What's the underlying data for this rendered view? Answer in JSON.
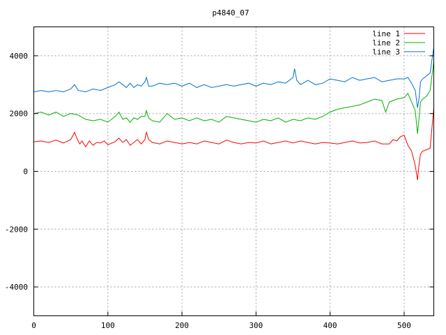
{
  "chart_data": {
    "type": "line",
    "title": "p4840_07",
    "xlabel": "",
    "ylabel": "",
    "xlim": [
      0,
      540
    ],
    "ylim": [
      -5000,
      5000
    ],
    "xticks": [
      0,
      100,
      200,
      300,
      400,
      500
    ],
    "yticks": [
      -4000,
      -2000,
      0,
      2000,
      4000
    ],
    "grid": true,
    "legend_position": "top-right",
    "series": [
      {
        "name": "line 1",
        "color": "#ff0000",
        "x": [
          0,
          10,
          20,
          30,
          40,
          50,
          55,
          58,
          62,
          65,
          70,
          75,
          80,
          85,
          90,
          95,
          100,
          110,
          115,
          120,
          125,
          130,
          135,
          140,
          145,
          150,
          152,
          155,
          160,
          170,
          180,
          190,
          200,
          210,
          220,
          230,
          240,
          250,
          260,
          270,
          280,
          290,
          300,
          310,
          320,
          330,
          340,
          350,
          360,
          370,
          380,
          390,
          400,
          410,
          420,
          430,
          440,
          450,
          460,
          470,
          480,
          485,
          490,
          495,
          500,
          505,
          510,
          515,
          518,
          520,
          522,
          525,
          530,
          535,
          540
        ],
        "y": [
          1020,
          1050,
          1000,
          1080,
          980,
          1100,
          1350,
          1150,
          950,
          1050,
          850,
          1050,
          900,
          1000,
          980,
          1050,
          920,
          1030,
          1150,
          1000,
          1100,
          900,
          1000,
          1100,
          950,
          1100,
          1350,
          1100,
          1000,
          950,
          1050,
          1000,
          950,
          1000,
          950,
          1050,
          1000,
          950,
          1080,
          1000,
          950,
          1000,
          980,
          1050,
          950,
          1000,
          1050,
          980,
          1050,
          1000,
          950,
          1000,
          980,
          950,
          1000,
          1050,
          980,
          1000,
          1050,
          950,
          950,
          1100,
          1050,
          1200,
          1250,
          900,
          700,
          200,
          -300,
          200,
          600,
          700,
          750,
          800,
          2200
        ]
      },
      {
        "name": "line 2",
        "color": "#00b000",
        "x": [
          0,
          10,
          20,
          30,
          40,
          50,
          60,
          70,
          80,
          90,
          100,
          110,
          115,
          120,
          125,
          130,
          135,
          140,
          145,
          150,
          152,
          155,
          160,
          170,
          180,
          190,
          200,
          210,
          220,
          230,
          240,
          250,
          260,
          270,
          280,
          290,
          300,
          310,
          320,
          330,
          340,
          350,
          360,
          370,
          380,
          390,
          400,
          410,
          420,
          430,
          440,
          450,
          460,
          470,
          475,
          480,
          490,
          500,
          505,
          510,
          515,
          518,
          520,
          522,
          525,
          530,
          535,
          540
        ],
        "y": [
          2000,
          2050,
          1950,
          2050,
          1900,
          2000,
          1950,
          1800,
          1750,
          1800,
          1700,
          1900,
          2050,
          1800,
          1850,
          1700,
          1850,
          1800,
          1900,
          1900,
          2100,
          1850,
          1750,
          1700,
          2000,
          1800,
          1850,
          1750,
          1850,
          1750,
          1800,
          1700,
          1900,
          1850,
          1800,
          1750,
          1700,
          1800,
          1750,
          1850,
          1700,
          1800,
          1750,
          1850,
          1800,
          1900,
          2050,
          2150,
          2200,
          2250,
          2300,
          2400,
          2500,
          2450,
          2050,
          2400,
          2500,
          2550,
          2700,
          2400,
          2100,
          1300,
          1800,
          2400,
          2500,
          2600,
          2800,
          3800
        ]
      },
      {
        "name": "line 3",
        "color": "#0070d0",
        "x": [
          0,
          10,
          20,
          30,
          40,
          50,
          55,
          60,
          70,
          80,
          90,
          100,
          110,
          115,
          120,
          125,
          130,
          135,
          140,
          145,
          150,
          152,
          155,
          160,
          170,
          180,
          190,
          200,
          210,
          220,
          230,
          240,
          250,
          260,
          270,
          280,
          290,
          300,
          310,
          320,
          330,
          340,
          350,
          352,
          355,
          360,
          370,
          380,
          390,
          400,
          410,
          420,
          430,
          440,
          450,
          460,
          470,
          480,
          490,
          500,
          505,
          510,
          515,
          518,
          520,
          522,
          525,
          530,
          535,
          540
        ],
        "y": [
          2750,
          2800,
          2750,
          2800,
          2750,
          2850,
          3000,
          2800,
          2750,
          2850,
          2800,
          2900,
          3000,
          3100,
          3000,
          2900,
          3050,
          2900,
          3000,
          2950,
          3100,
          3250,
          2950,
          2950,
          3050,
          3000,
          3050,
          2950,
          3050,
          2900,
          3000,
          2900,
          2950,
          3000,
          2950,
          3000,
          3050,
          2950,
          3050,
          3000,
          3100,
          3050,
          3250,
          3550,
          3150,
          3000,
          3150,
          3000,
          3050,
          3200,
          3150,
          3100,
          3250,
          3150,
          3200,
          3250,
          3100,
          3150,
          3200,
          3200,
          3250,
          3050,
          2800,
          2200,
          2500,
          3100,
          3200,
          3300,
          3400,
          4300
        ]
      }
    ]
  }
}
